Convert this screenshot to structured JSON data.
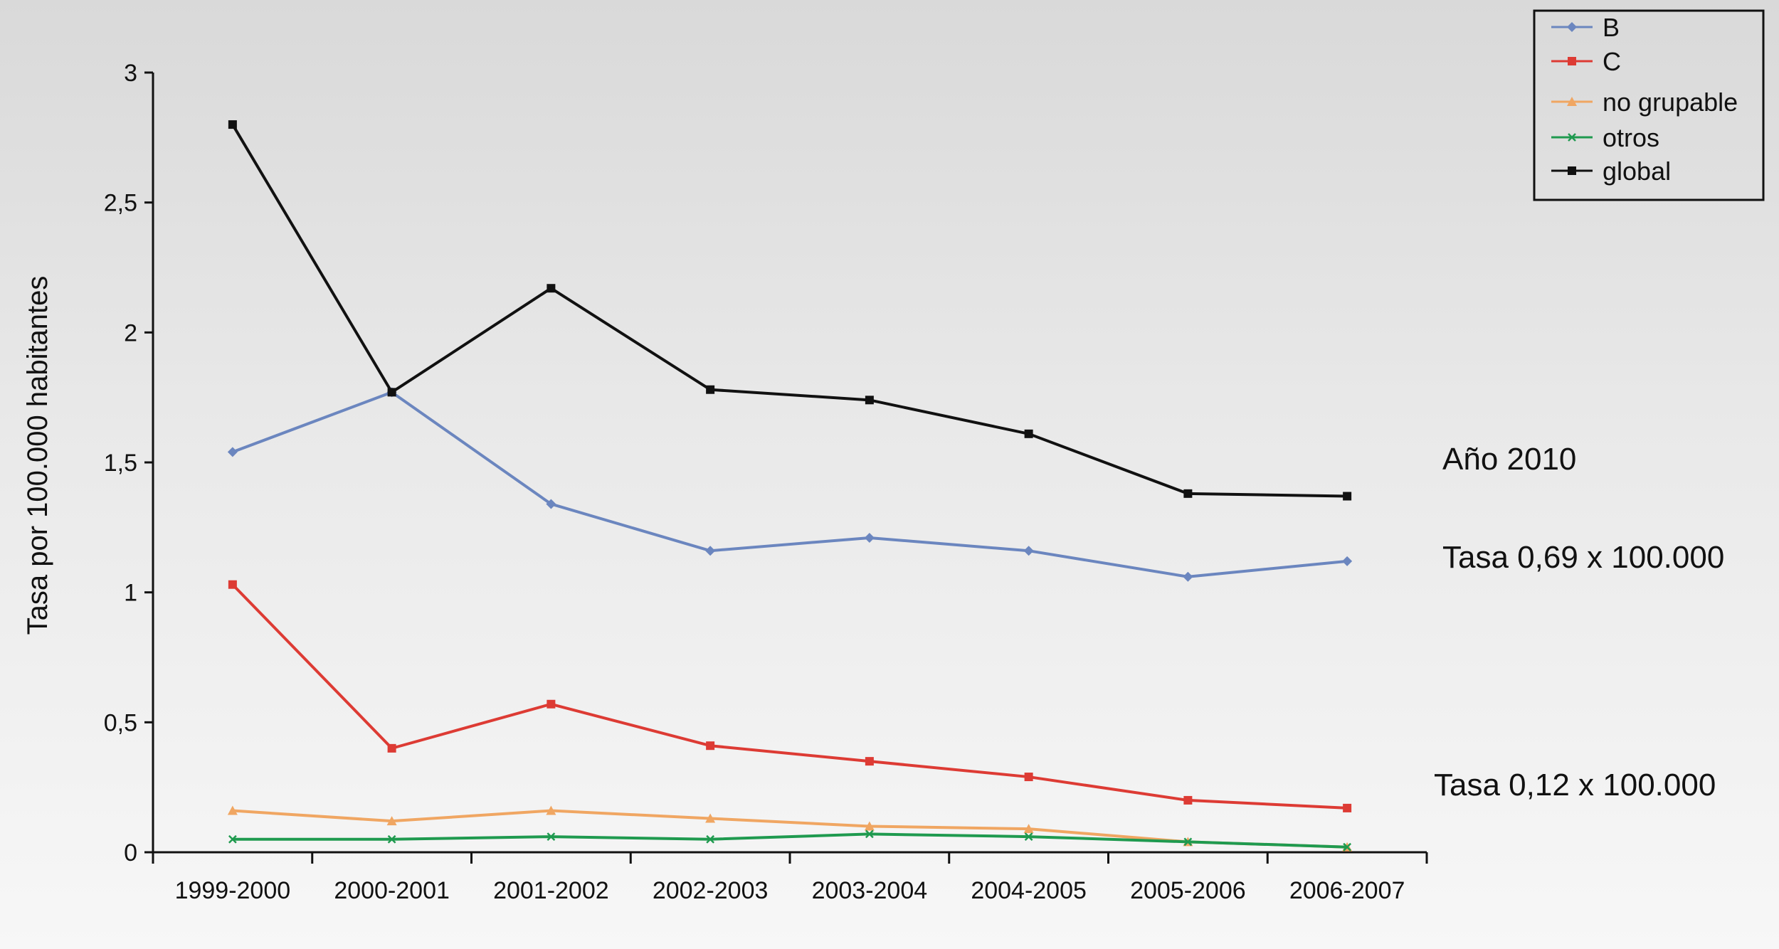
{
  "chart_data": {
    "type": "line",
    "title": "",
    "xlabel": "",
    "ylabel": "Tasa por 100.000 habitantes",
    "ylim": [
      0,
      3
    ],
    "y_ticks": [
      {
        "value": 0,
        "label": "0"
      },
      {
        "value": 0.5,
        "label": "0,5"
      },
      {
        "value": 1,
        "label": "1"
      },
      {
        "value": 1.5,
        "label": "1,5"
      },
      {
        "value": 2,
        "label": "2"
      },
      {
        "value": 2.5,
        "label": "2,5"
      },
      {
        "value": 3,
        "label": "3"
      }
    ],
    "categories": [
      "1999-2000",
      "2000-2001",
      "2001-2002",
      "2002-2003",
      "2003-2004",
      "2004-2005",
      "2005-2006",
      "2006-2007"
    ],
    "grid": false,
    "legend_position": "top-right",
    "series": [
      {
        "name": "B",
        "color": "#6b86bf",
        "marker": "diamond",
        "values": [
          1.54,
          1.77,
          1.34,
          1.16,
          1.21,
          1.16,
          1.06,
          1.12
        ]
      },
      {
        "name": "C",
        "color": "#dd3b34",
        "marker": "square",
        "values": [
          1.03,
          0.4,
          0.57,
          0.41,
          0.35,
          0.29,
          0.2,
          0.17
        ]
      },
      {
        "name": "no grupable",
        "color": "#f0a662",
        "marker": "triangle",
        "values": [
          0.16,
          0.12,
          0.16,
          0.13,
          0.1,
          0.09,
          0.04,
          0.02
        ]
      },
      {
        "name": "otros",
        "color": "#1f9a4f",
        "marker": "x",
        "values": [
          0.05,
          0.05,
          0.06,
          0.05,
          0.07,
          0.06,
          0.04,
          0.02
        ]
      },
      {
        "name": "global",
        "color": "#111111",
        "marker": "square",
        "values": [
          2.8,
          1.77,
          2.17,
          1.78,
          1.74,
          1.61,
          1.38,
          1.37
        ]
      }
    ],
    "annotations": [
      "Año 2010",
      "Tasa 0,69 x 100.000",
      "Tasa 0,12 x 100.000"
    ]
  }
}
